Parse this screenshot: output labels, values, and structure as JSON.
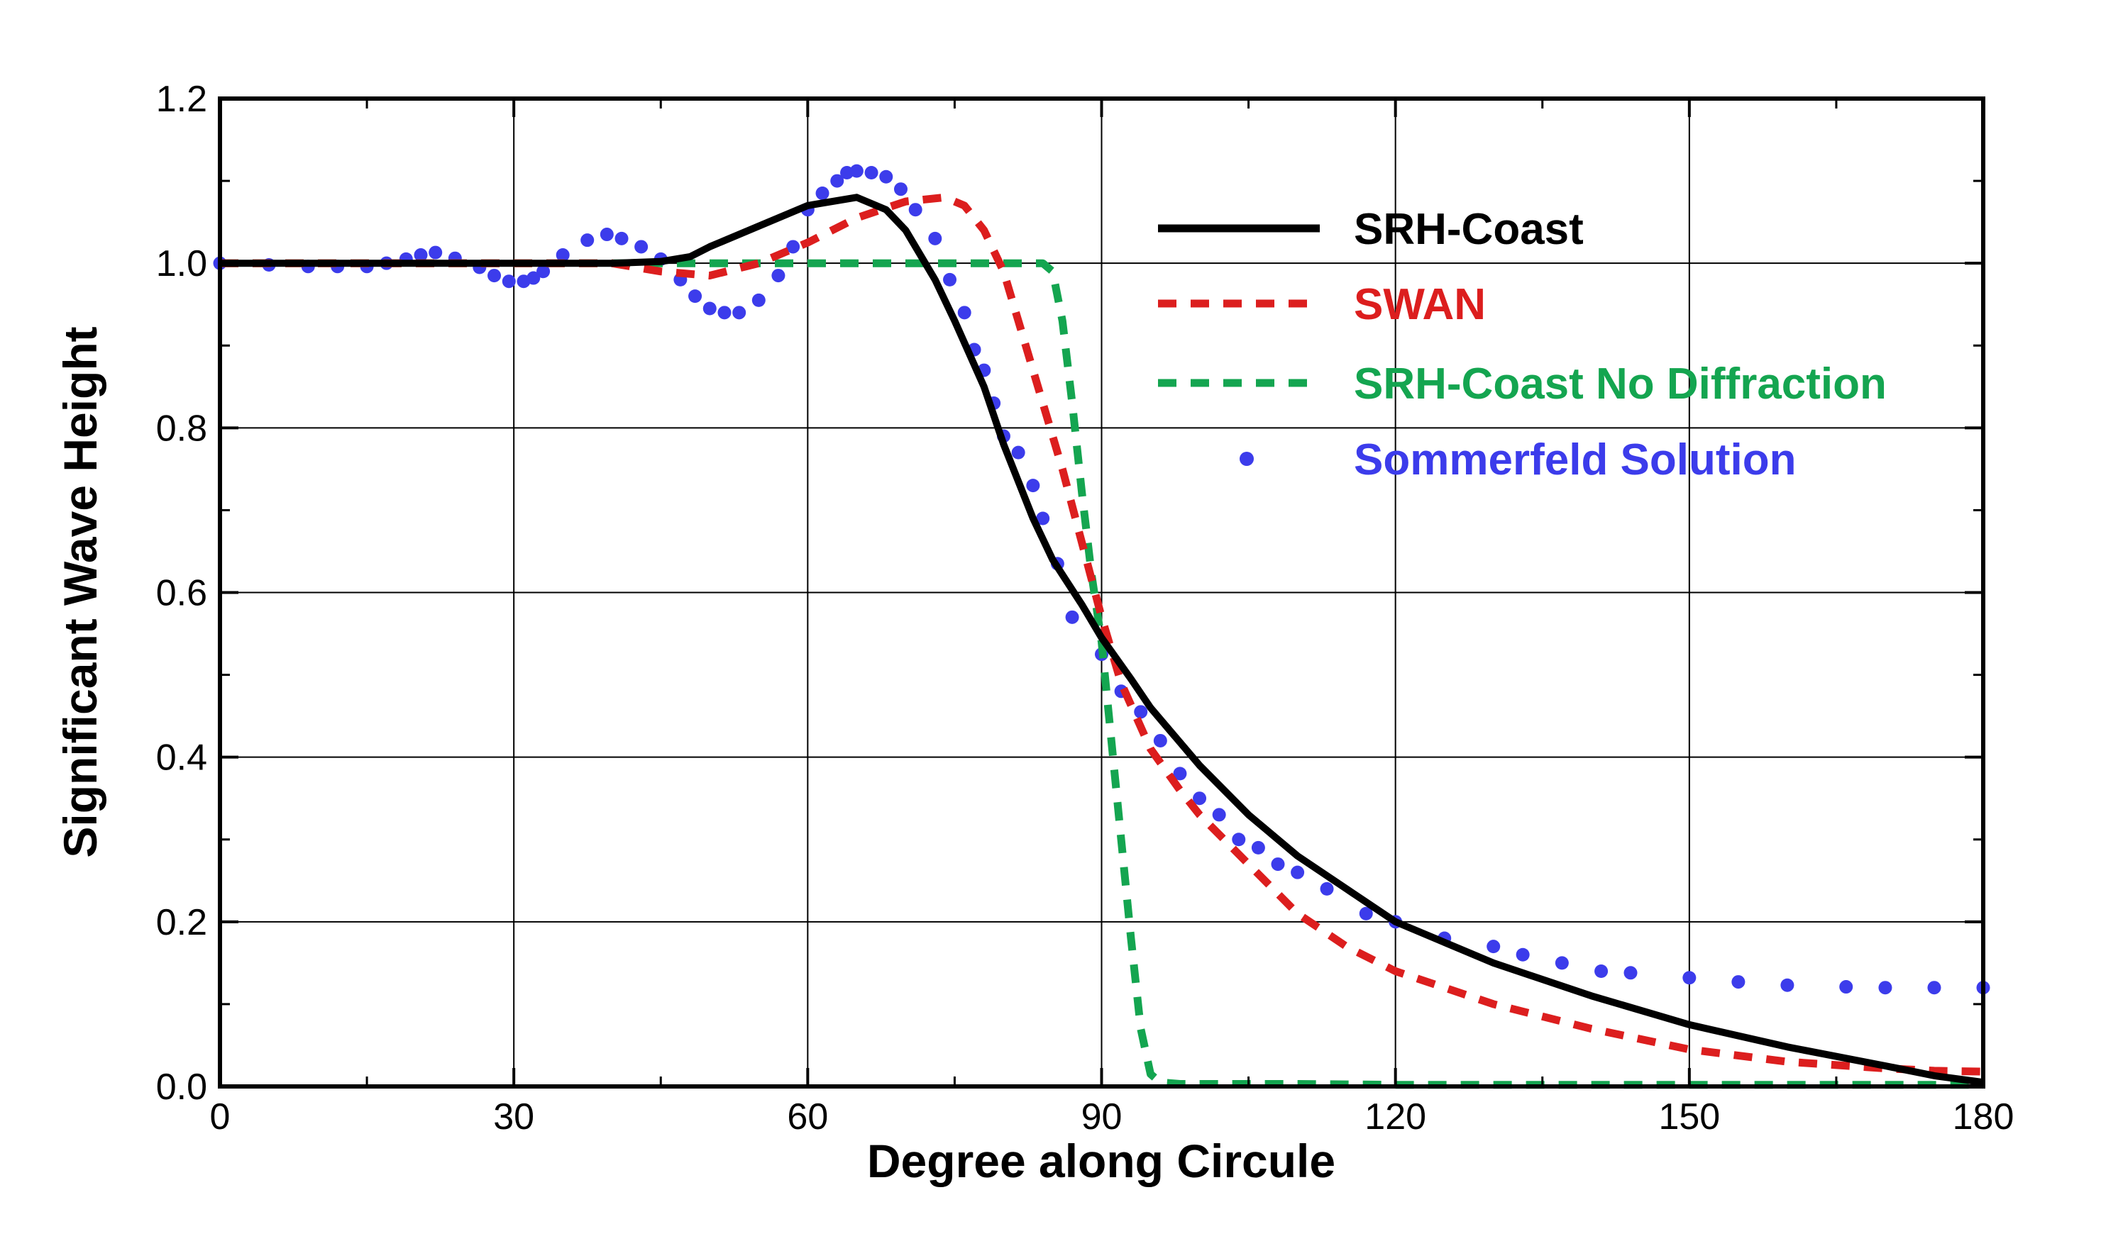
{
  "chart_data": {
    "type": "line",
    "title": "",
    "xlabel": "Degree along Circule",
    "ylabel": "Significant Wave Height",
    "xlim": [
      0,
      180
    ],
    "ylim": [
      0,
      1.2
    ],
    "xticks": [
      0,
      30,
      60,
      90,
      120,
      150,
      180
    ],
    "xtick_labels": [
      "0",
      "30",
      "60",
      "90",
      "120",
      "150",
      "180"
    ],
    "yticks": [
      0,
      0.2,
      0.4,
      0.6,
      0.8,
      1.0,
      1.2
    ],
    "ytick_labels": [
      "0.0",
      "0.2",
      "0.4",
      "0.6",
      "0.8",
      "1.0",
      "1.2"
    ],
    "grid": true,
    "legend_position": "top-right",
    "series": [
      {
        "name": "SRH-Coast",
        "color": "#000000",
        "style": "solid",
        "x": [
          0,
          10,
          20,
          30,
          40,
          45,
          48,
          50,
          55,
          60,
          65,
          68,
          70,
          73,
          75,
          78,
          80,
          83,
          85,
          88,
          90,
          93,
          95,
          100,
          105,
          110,
          115,
          120,
          130,
          140,
          150,
          160,
          170,
          175,
          180
        ],
        "y": [
          1.0,
          1.0,
          1.0,
          1.0,
          1.0,
          1.002,
          1.008,
          1.02,
          1.045,
          1.07,
          1.08,
          1.065,
          1.04,
          0.98,
          0.93,
          0.85,
          0.78,
          0.69,
          0.64,
          0.585,
          0.545,
          0.495,
          0.46,
          0.39,
          0.33,
          0.28,
          0.24,
          0.2,
          0.15,
          0.11,
          0.075,
          0.048,
          0.025,
          0.013,
          0.005
        ]
      },
      {
        "name": "SWAN",
        "color": "#dc1e1e",
        "style": "dashed",
        "x": [
          0,
          20,
          30,
          40,
          45,
          50,
          55,
          60,
          65,
          70,
          74,
          76,
          78,
          80,
          82,
          84,
          86,
          88,
          90,
          92,
          95,
          98,
          100,
          105,
          110,
          115,
          120,
          130,
          140,
          150,
          160,
          170,
          175,
          180
        ],
        "y": [
          1.0,
          1.0,
          1.0,
          1.0,
          0.99,
          0.985,
          1.0,
          1.025,
          1.055,
          1.075,
          1.08,
          1.07,
          1.04,
          0.99,
          0.91,
          0.83,
          0.75,
          0.66,
          0.57,
          0.49,
          0.41,
          0.36,
          0.33,
          0.27,
          0.21,
          0.17,
          0.14,
          0.1,
          0.07,
          0.045,
          0.03,
          0.022,
          0.019,
          0.018
        ]
      },
      {
        "name": "SRH-Coast No Diffraction",
        "color": "#14a550",
        "style": "dashed",
        "x": [
          0,
          20,
          40,
          60,
          80,
          84,
          85,
          86,
          87,
          88,
          89,
          90,
          91,
          92,
          93,
          94,
          95,
          96,
          98,
          100,
          110,
          120,
          150,
          180
        ],
        "y": [
          1.0,
          1.0,
          1.0,
          1.0,
          1.0,
          1.0,
          0.99,
          0.93,
          0.83,
          0.72,
          0.62,
          0.54,
          0.42,
          0.3,
          0.18,
          0.07,
          0.015,
          0.005,
          0.003,
          0.003,
          0.003,
          0.002,
          0.002,
          0.002
        ]
      },
      {
        "name": "Sommerfeld Solution",
        "color": "#3c3ceb",
        "style": "dots",
        "x": [
          0,
          5,
          9,
          12,
          15,
          17,
          19,
          20.5,
          22,
          24,
          26.5,
          28,
          29.5,
          31,
          32,
          33,
          35,
          37.5,
          39.5,
          41,
          43,
          45,
          47,
          48.5,
          50,
          51.5,
          53,
          55,
          57,
          58.5,
          60,
          61.5,
          63,
          64,
          65,
          66.5,
          68,
          69.5,
          71,
          73,
          74.5,
          76,
          77,
          78,
          79,
          80,
          81.5,
          83,
          84,
          85.5,
          87,
          90,
          92,
          94,
          96,
          98,
          100,
          102,
          104,
          106,
          108,
          110,
          113,
          117,
          120,
          125,
          130,
          133,
          137,
          141,
          144,
          150,
          155,
          160,
          166,
          170,
          175,
          180
        ],
        "y": [
          1.0,
          0.998,
          0.996,
          0.996,
          0.996,
          1.0,
          1.005,
          1.01,
          1.013,
          1.006,
          0.995,
          0.985,
          0.978,
          0.978,
          0.982,
          0.99,
          1.01,
          1.028,
          1.035,
          1.03,
          1.02,
          1.005,
          0.98,
          0.96,
          0.945,
          0.94,
          0.94,
          0.955,
          0.985,
          1.02,
          1.065,
          1.085,
          1.1,
          1.11,
          1.112,
          1.11,
          1.105,
          1.09,
          1.065,
          1.03,
          0.98,
          0.94,
          0.895,
          0.87,
          0.83,
          0.79,
          0.77,
          0.73,
          0.69,
          0.635,
          0.57,
          0.525,
          0.48,
          0.455,
          0.42,
          0.38,
          0.35,
          0.33,
          0.3,
          0.29,
          0.27,
          0.26,
          0.24,
          0.21,
          0.2,
          0.18,
          0.17,
          0.16,
          0.15,
          0.14,
          0.138,
          0.132,
          0.127,
          0.123,
          0.121,
          0.12,
          0.12,
          0.12
        ]
      }
    ]
  }
}
